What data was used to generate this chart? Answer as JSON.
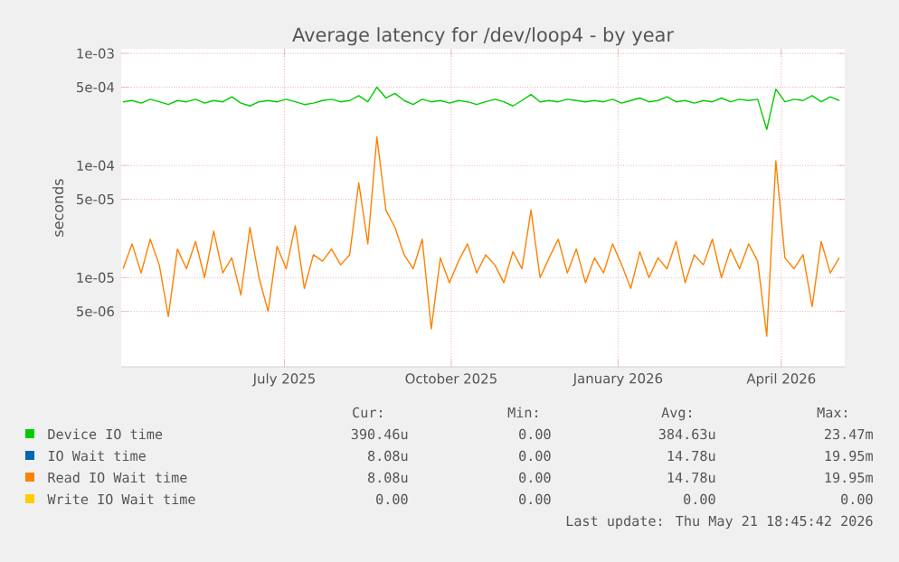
{
  "chart_data": {
    "type": "line",
    "title": "Average latency for /dev/loop4 - by year",
    "ylabel": "seconds",
    "log": "y",
    "grid": true,
    "legend": "bottom",
    "xlim": [
      "2025-04-17",
      "2026-05-21"
    ],
    "xticks": [
      {
        "value": "2025-07-16",
        "label": "July 2025"
      },
      {
        "value": "2025-10-16",
        "label": "October 2025"
      },
      {
        "value": "2026-01-16",
        "label": "January 2026"
      },
      {
        "value": "2026-04-16",
        "label": "April 2026"
      }
    ],
    "ylim": [
      1.6e-06,
      0.0011
    ],
    "yticks": [
      {
        "value": 0.001,
        "label": "1e-03"
      },
      {
        "value": 0.0005,
        "label": "5e-04"
      },
      {
        "value": 0.0001,
        "label": "1e-04"
      },
      {
        "value": 5e-05,
        "label": "5e-05"
      },
      {
        "value": 1e-05,
        "label": "1e-05"
      },
      {
        "value": 5e-06,
        "label": "5e-06"
      }
    ],
    "x": [
      "2025-04-18",
      "2025-04-23",
      "2025-04-28",
      "2025-05-03",
      "2025-05-08",
      "2025-05-13",
      "2025-05-18",
      "2025-05-23",
      "2025-05-28",
      "2025-06-02",
      "2025-06-07",
      "2025-06-12",
      "2025-06-17",
      "2025-06-22",
      "2025-06-27",
      "2025-07-02",
      "2025-07-07",
      "2025-07-12",
      "2025-07-17",
      "2025-07-22",
      "2025-07-27",
      "2025-08-01",
      "2025-08-06",
      "2025-08-11",
      "2025-08-16",
      "2025-08-21",
      "2025-08-26",
      "2025-08-31",
      "2025-09-05",
      "2025-09-10",
      "2025-09-15",
      "2025-09-20",
      "2025-09-25",
      "2025-09-30",
      "2025-10-05",
      "2025-10-10",
      "2025-10-15",
      "2025-10-20",
      "2025-10-25",
      "2025-10-30",
      "2025-11-04",
      "2025-11-09",
      "2025-11-14",
      "2025-11-19",
      "2025-11-24",
      "2025-11-29",
      "2025-12-04",
      "2025-12-09",
      "2025-12-14",
      "2025-12-19",
      "2025-12-24",
      "2025-12-29",
      "2026-01-03",
      "2026-01-08",
      "2026-01-13",
      "2026-01-18",
      "2026-01-23",
      "2026-01-28",
      "2026-02-02",
      "2026-02-07",
      "2026-02-12",
      "2026-02-17",
      "2026-02-22",
      "2026-02-27",
      "2026-03-04",
      "2026-03-09",
      "2026-03-14",
      "2026-03-19",
      "2026-03-24",
      "2026-03-29",
      "2026-04-03",
      "2026-04-08",
      "2026-04-13",
      "2026-04-18",
      "2026-04-23",
      "2026-04-28",
      "2026-05-03",
      "2026-05-08",
      "2026-05-13",
      "2026-05-18"
    ],
    "series": [
      {
        "name": "Device IO time",
        "color": "#00cc00",
        "values": [
          0.00037,
          0.00038,
          0.00036,
          0.00039,
          0.00037,
          0.00035,
          0.00038,
          0.00037,
          0.00039,
          0.00036,
          0.00038,
          0.00037,
          0.00041,
          0.00036,
          0.00034,
          0.00037,
          0.00038,
          0.00037,
          0.00039,
          0.00037,
          0.00035,
          0.00036,
          0.00038,
          0.00039,
          0.00037,
          0.00038,
          0.00042,
          0.00037,
          0.0005,
          0.0004,
          0.00044,
          0.00038,
          0.00035,
          0.00039,
          0.00037,
          0.00038,
          0.00036,
          0.00038,
          0.00037,
          0.00035,
          0.00037,
          0.00039,
          0.00037,
          0.00034,
          0.00038,
          0.00043,
          0.00037,
          0.00038,
          0.00037,
          0.00039,
          0.00038,
          0.00037,
          0.00038,
          0.00037,
          0.00039,
          0.00036,
          0.00038,
          0.0004,
          0.00037,
          0.00038,
          0.00041,
          0.00037,
          0.00038,
          0.00036,
          0.00038,
          0.00037,
          0.0004,
          0.00037,
          0.00039,
          0.00038,
          0.00039,
          0.00021,
          0.00048,
          0.00037,
          0.00039,
          0.00038,
          0.00042,
          0.00037,
          0.00041,
          0.00038
        ]
      },
      {
        "name": "IO Wait time",
        "color": "#0066b3",
        "values": [
          null,
          null,
          null,
          null,
          null,
          null,
          null,
          null,
          null,
          null,
          null,
          null,
          null,
          null,
          null,
          null,
          null,
          null,
          null,
          null,
          null,
          null,
          null,
          null,
          null,
          null,
          null,
          null,
          null,
          null,
          null,
          null,
          null,
          null,
          null,
          null,
          null,
          null,
          null,
          null,
          null,
          null,
          null,
          null,
          null,
          null,
          null,
          null,
          null,
          null,
          null,
          null,
          null,
          null,
          null,
          null,
          null,
          null,
          null,
          null,
          null,
          null,
          null,
          null,
          null,
          null,
          null,
          null,
          null,
          null,
          null,
          null,
          null,
          null,
          null,
          null,
          null,
          null,
          null,
          null
        ]
      },
      {
        "name": "Read IO Wait time",
        "color": "#ff8000",
        "values": [
          1.2e-05,
          2e-05,
          1.1e-05,
          2.2e-05,
          1.3e-05,
          4.5e-06,
          1.8e-05,
          1.2e-05,
          2.1e-05,
          1e-05,
          2.6e-05,
          1.1e-05,
          1.5e-05,
          7e-06,
          2.8e-05,
          1e-05,
          5e-06,
          1.9e-05,
          1.2e-05,
          2.9e-05,
          8e-06,
          1.6e-05,
          1.4e-05,
          1.8e-05,
          1.3e-05,
          1.6e-05,
          7e-05,
          2e-05,
          0.00018,
          4e-05,
          2.8e-05,
          1.6e-05,
          1.2e-05,
          2.2e-05,
          3.5e-06,
          1.5e-05,
          9e-06,
          1.4e-05,
          2e-05,
          1.1e-05,
          1.6e-05,
          1.3e-05,
          9e-06,
          1.7e-05,
          1.2e-05,
          4e-05,
          1e-05,
          1.5e-05,
          2.2e-05,
          1.1e-05,
          1.8e-05,
          9e-06,
          1.5e-05,
          1.1e-05,
          2e-05,
          1.3e-05,
          8e-06,
          1.7e-05,
          1e-05,
          1.5e-05,
          1.2e-05,
          2.1e-05,
          9e-06,
          1.6e-05,
          1.3e-05,
          2.2e-05,
          1e-05,
          1.8e-05,
          1.2e-05,
          2e-05,
          1.4e-05,
          3e-06,
          0.00011,
          1.5e-05,
          1.2e-05,
          1.6e-05,
          5.5e-06,
          2.1e-05,
          1.1e-05,
          1.5e-05
        ]
      },
      {
        "name": "Write IO Wait time",
        "color": "#ffcc00",
        "values": [
          null,
          null,
          null,
          null,
          null,
          null,
          null,
          null,
          null,
          null,
          null,
          null,
          null,
          null,
          null,
          null,
          null,
          null,
          null,
          null,
          null,
          null,
          null,
          null,
          null,
          null,
          null,
          null,
          null,
          null,
          null,
          null,
          null,
          null,
          null,
          null,
          null,
          null,
          null,
          null,
          null,
          null,
          null,
          null,
          null,
          null,
          null,
          null,
          null,
          null,
          null,
          null,
          null,
          null,
          null,
          null,
          null,
          null,
          null,
          null,
          null,
          null,
          null,
          null,
          null,
          null,
          null,
          null,
          null,
          null,
          null,
          null,
          null,
          null,
          null,
          null,
          null,
          null,
          null,
          null
        ]
      }
    ],
    "annotations": [
      "Cur:",
      "Min:",
      "Avg:",
      "Max:",
      "390.46u",
      "0.00",
      "384.63u",
      "23.47m",
      "8.08u",
      "0.00",
      "14.78u",
      "19.95m",
      "8.08u",
      "0.00",
      "14.78u",
      "19.95m",
      "0.00",
      "0.00",
      "0.00",
      "0.00",
      "Last update: Thu May 21 18:45:42 2026"
    ]
  }
}
